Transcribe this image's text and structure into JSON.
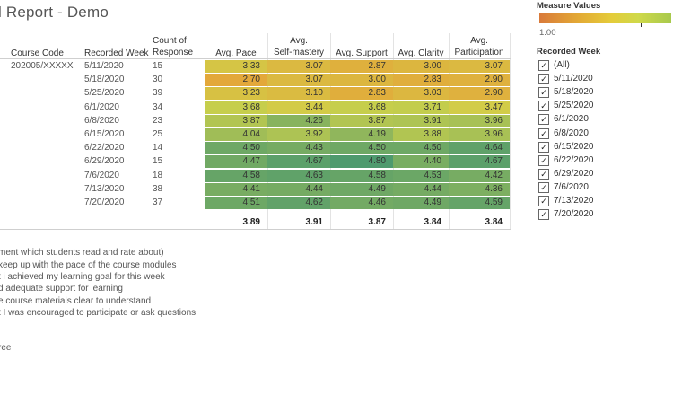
{
  "title": "l Report - Demo",
  "columns": {
    "course_code": "Course Code",
    "recorded_week": "Recorded Week",
    "count_l1": "Count of",
    "count_l2": "Response",
    "pace": "Avg. Pace",
    "mastery_l1": "Avg.",
    "mastery_l2": "Self-mastery",
    "support": "Avg. Support",
    "clarity": "Avg. Clarity",
    "part_l1": "Avg.",
    "part_l2": "Participation"
  },
  "course_code_value": "202005/XXXXX",
  "rows": [
    {
      "week": "5/11/2020",
      "count": "15",
      "pace": "3.33",
      "mastery": "3.07",
      "support": "2.87",
      "clarity": "3.00",
      "participation": "3.07"
    },
    {
      "week": "5/18/2020",
      "count": "30",
      "pace": "2.70",
      "mastery": "3.07",
      "support": "3.00",
      "clarity": "2.83",
      "participation": "2.90"
    },
    {
      "week": "5/25/2020",
      "count": "39",
      "pace": "3.23",
      "mastery": "3.10",
      "support": "2.83",
      "clarity": "3.03",
      "participation": "2.90"
    },
    {
      "week": "6/1/2020",
      "count": "34",
      "pace": "3.68",
      "mastery": "3.44",
      "support": "3.68",
      "clarity": "3.71",
      "participation": "3.47"
    },
    {
      "week": "6/8/2020",
      "count": "23",
      "pace": "3.87",
      "mastery": "4.26",
      "support": "3.87",
      "clarity": "3.91",
      "participation": "3.96"
    },
    {
      "week": "6/15/2020",
      "count": "25",
      "pace": "4.04",
      "mastery": "3.92",
      "support": "4.19",
      "clarity": "3.88",
      "participation": "3.96"
    },
    {
      "week": "6/22/2020",
      "count": "14",
      "pace": "4.50",
      "mastery": "4.43",
      "support": "4.50",
      "clarity": "4.50",
      "participation": "4.64"
    },
    {
      "week": "6/29/2020",
      "count": "15",
      "pace": "4.47",
      "mastery": "4.67",
      "support": "4.80",
      "clarity": "4.40",
      "participation": "4.67"
    },
    {
      "week": "7/6/2020",
      "count": "18",
      "pace": "4.58",
      "mastery": "4.63",
      "support": "4.58",
      "clarity": "4.53",
      "participation": "4.42"
    },
    {
      "week": "7/13/2020",
      "count": "38",
      "pace": "4.41",
      "mastery": "4.44",
      "support": "4.49",
      "clarity": "4.44",
      "participation": "4.36"
    },
    {
      "week": "7/20/2020",
      "count": "37",
      "pace": "4.51",
      "mastery": "4.62",
      "support": "4.46",
      "clarity": "4.49",
      "participation": "4.59"
    }
  ],
  "totals": {
    "pace": "3.89",
    "mastery": "3.91",
    "support": "3.87",
    "clarity": "3.84",
    "participation": "3.84"
  },
  "notes": [
    "ment which students read and rate about)",
    " keep up with the pace of the course modules",
    "t i achieved my learning goal for this week",
    "d adequate support for learning",
    "e course materials clear to understand",
    "t I was encouraged to participate or ask questions",
    "ree"
  ],
  "measure_values": {
    "title": "Measure Values",
    "min_label": "1.00"
  },
  "recorded_week_filter": {
    "title": "Recorded Week",
    "items": [
      "(All)",
      "5/11/2020",
      "5/18/2020",
      "5/25/2020",
      "6/1/2020",
      "6/8/2020",
      "6/15/2020",
      "6/22/2020",
      "6/29/2020",
      "7/6/2020",
      "7/13/2020",
      "7/20/2020"
    ],
    "checked": true
  },
  "colors": {
    "low": "#e3a83a",
    "mid": "#cfd24a",
    "high": "#4e9a6e"
  }
}
